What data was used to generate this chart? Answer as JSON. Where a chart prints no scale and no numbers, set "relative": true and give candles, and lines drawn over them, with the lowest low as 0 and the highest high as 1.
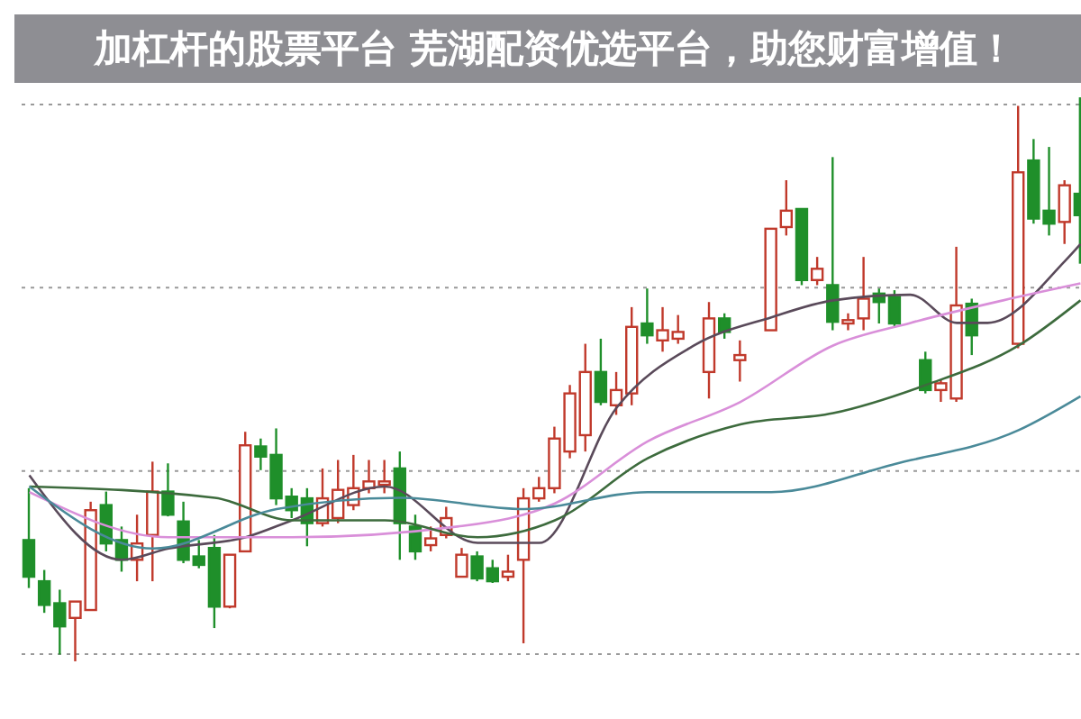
{
  "chart_data": {
    "type": "candlestick",
    "title": "加杠杆的股票平台 芜湖配资优选平台，助您财富增值！",
    "relative": true,
    "grid": "y",
    "tick_labels": false,
    "categories": [
      null,
      null,
      null,
      null,
      null,
      null,
      null,
      null,
      null,
      null,
      null,
      null,
      null,
      null,
      null,
      null,
      null,
      null,
      null,
      null,
      null,
      null,
      null,
      null,
      null,
      null,
      null,
      null,
      null,
      null,
      null,
      null,
      null,
      null,
      null,
      null,
      null,
      null,
      null,
      null,
      null,
      null,
      null,
      null,
      null,
      null,
      null,
      null,
      null,
      null,
      null,
      null,
      null,
      null,
      null,
      null,
      null,
      null,
      null,
      null,
      null,
      null,
      null,
      null,
      null,
      null,
      null,
      null,
      null
    ],
    "ohlc": [
      [
        0.215,
        0.307,
        0.13,
        0.15
      ],
      [
        0.142,
        0.162,
        0.086,
        0.1
      ],
      [
        0.103,
        0.127,
        0.012,
        0.062
      ],
      [
        0.077,
        0.106,
        0,
        0.106
      ],
      [
        0.091,
        0.283,
        0.091,
        0.268
      ],
      [
        0.277,
        0.301,
        0.195,
        0.209
      ],
      [
        0.215,
        0.239,
        0.159,
        0.18
      ],
      [
        0.18,
        0.26,
        0.142,
        0.209
      ],
      [
        0.224,
        0.354,
        0.142,
        0.301
      ],
      [
        0.301,
        0.351,
        0.257,
        0.26
      ],
      [
        0.248,
        0.283,
        0.174,
        0.18
      ],
      [
        0.186,
        0.215,
        0.165,
        0.171
      ],
      [
        0.201,
        0.224,
        0.059,
        0.097
      ],
      [
        0.097,
        0.189,
        0.094,
        0.189
      ],
      [
        0.195,
        0.407,
        0.195,
        0.383
      ],
      [
        0.381,
        0.395,
        0.339,
        0.363
      ],
      [
        0.366,
        0.413,
        0.277,
        0.289
      ],
      [
        0.292,
        0.307,
        0.254,
        0.268
      ],
      [
        0.289,
        0.307,
        0.204,
        0.245
      ],
      [
        0.245,
        0.342,
        0.239,
        0.289
      ],
      [
        0.254,
        0.357,
        0.245,
        0.304
      ],
      [
        0.277,
        0.366,
        0.268,
        0.307
      ],
      [
        0.307,
        0.357,
        0.298,
        0.319
      ],
      [
        0.313,
        0.357,
        0.298,
        0.319
      ],
      [
        0.342,
        0.372,
        0.18,
        0.245
      ],
      [
        0.239,
        0.26,
        0.18,
        0.195
      ],
      [
        0.206,
        0.239,
        0.195,
        0.218
      ],
      [
        0.224,
        0.274,
        0.218,
        0.254
      ],
      [
        0.15,
        0.201,
        0.15,
        0.189
      ],
      [
        0.186,
        0.195,
        0.142,
        0.147
      ],
      [
        0.165,
        0.18,
        0.139,
        0.142
      ],
      [
        0.15,
        0.189,
        0.142,
        0.159
      ],
      [
        0.18,
        0.307,
        0.032,
        0.289
      ],
      [
        0.289,
        0.327,
        0.283,
        0.307
      ],
      [
        0.307,
        0.416,
        0.298,
        0.395
      ],
      [
        0.372,
        0.49,
        0.36,
        0.475
      ],
      [
        0.401,
        0.563,
        0.372,
        0.513
      ],
      [
        0.513,
        0.572,
        0.454,
        0.46
      ],
      [
        0.454,
        0.513,
        0.437,
        0.481
      ],
      [
        0.475,
        0.628,
        0.454,
        0.593
      ],
      [
        0.599,
        0.661,
        0.563,
        0.578
      ],
      [
        0.569,
        0.628,
        0.549,
        0.587
      ],
      [
        0.572,
        0.614,
        0.563,
        0.584
      ],
      null,
      [
        0.513,
        0.637,
        0.466,
        0.608
      ],
      [
        0.608,
        0.617,
        0.572,
        0.584
      ],
      [
        0.534,
        0.569,
        0.496,
        0.543
      ],
      null,
      [
        0.587,
        0.767,
        0.587,
        0.767
      ],
      [
        0.77,
        0.853,
        0.755,
        0.799
      ],
      [
        0.802,
        0.802,
        0.667,
        0.676
      ],
      [
        0.676,
        0.717,
        0.667,
        0.696
      ],
      [
        0.667,
        0.894,
        0.587,
        0.602
      ],
      [
        0.599,
        0.617,
        0.587,
        0.605
      ],
      [
        0.608,
        0.717,
        0.587,
        0.643
      ],
      [
        0.652,
        0.661,
        0.599,
        0.637
      ],
      [
        0.646,
        0.658,
        0.593,
        0.599
      ],
      null,
      [
        0.534,
        0.549,
        0.475,
        0.481
      ],
      [
        0.481,
        0.499,
        0.46,
        0.493
      ],
      [
        0.466,
        0.735,
        0.46,
        0.631
      ],
      [
        0.634,
        0.643,
        0.543,
        0.578
      ],
      null,
      null,
      [
        0.563,
        0.985,
        0.555,
        0.867
      ],
      [
        0.888,
        0.926,
        0.776,
        0.785
      ],
      [
        0.799,
        0.912,
        0.755,
        0.776
      ],
      [
        0.779,
        0.853,
        0.74,
        0.844
      ],
      [
        0.829,
        1,
        0.705,
        0.791
      ]
    ],
    "series": [
      {
        "type": "line",
        "color": "#5a4a5a",
        "values": [
          0.33,
          null,
          null,
          null,
          null,
          null,
          0.18,
          null,
          null,
          0.2,
          null,
          null,
          null,
          null,
          0.22,
          null,
          null,
          0.25,
          null,
          null,
          null,
          null,
          null,
          0.31,
          null,
          null,
          null,
          null,
          null,
          0.21,
          null,
          null,
          null,
          0.21,
          null,
          null,
          null,
          null,
          0.45,
          null,
          null,
          null,
          null,
          0.56,
          null,
          null,
          null,
          null,
          0.61,
          null,
          null,
          null,
          0.64,
          null,
          null,
          null,
          null,
          0.65,
          null,
          null,
          0.6,
          null,
          0.6,
          null,
          null,
          null,
          null,
          0.71,
          0.74
        ]
      },
      {
        "type": "line",
        "color": "#d98fd9",
        "values": [
          0.3,
          null,
          null,
          null,
          null,
          null,
          null,
          null,
          null,
          0.22,
          null,
          null,
          null,
          null,
          null,
          null,
          null,
          0.22,
          null,
          null,
          null,
          null,
          null,
          null,
          null,
          null,
          null,
          null,
          0.24,
          null,
          null,
          null,
          null,
          null,
          0.28,
          null,
          null,
          null,
          null,
          null,
          0.39,
          null,
          null,
          null,
          null,
          null,
          0.46,
          null,
          null,
          null,
          null,
          null,
          0.56,
          null,
          null,
          null,
          null,
          0.6,
          null,
          null,
          null,
          null,
          null,
          0.64,
          null,
          null,
          null,
          null,
          0.67
        ]
      },
      {
        "type": "line",
        "color": "#3d6b3d",
        "values": [
          0.31,
          null,
          null,
          null,
          null,
          null,
          null,
          null,
          null,
          null,
          null,
          null,
          0.29,
          null,
          null,
          null,
          null,
          0.25,
          null,
          null,
          null,
          null,
          null,
          0.25,
          null,
          null,
          null,
          null,
          null,
          0.22,
          null,
          null,
          null,
          null,
          0.25,
          null,
          null,
          null,
          null,
          null,
          0.36,
          null,
          null,
          null,
          null,
          null,
          0.42,
          null,
          null,
          null,
          null,
          null,
          0.44,
          null,
          null,
          null,
          null,
          null,
          0.49,
          null,
          null,
          null,
          null,
          null,
          0.56,
          null,
          null,
          null,
          0.64
        ]
      },
      {
        "type": "line",
        "color": "#4a8a99",
        "values": [
          0.31,
          null,
          null,
          null,
          null,
          null,
          null,
          null,
          0.2,
          null,
          null,
          null,
          null,
          null,
          null,
          null,
          0.27,
          null,
          null,
          null,
          null,
          null,
          null,
          null,
          0.29,
          null,
          null,
          null,
          null,
          null,
          null,
          null,
          0.27,
          null,
          null,
          null,
          null,
          null,
          null,
          null,
          0.3,
          null,
          null,
          null,
          null,
          null,
          null,
          null,
          0.3,
          null,
          null,
          null,
          null,
          null,
          null,
          null,
          0.35,
          null,
          null,
          null,
          null,
          null,
          null,
          null,
          0.41,
          null,
          null,
          null,
          0.47
        ]
      }
    ]
  }
}
